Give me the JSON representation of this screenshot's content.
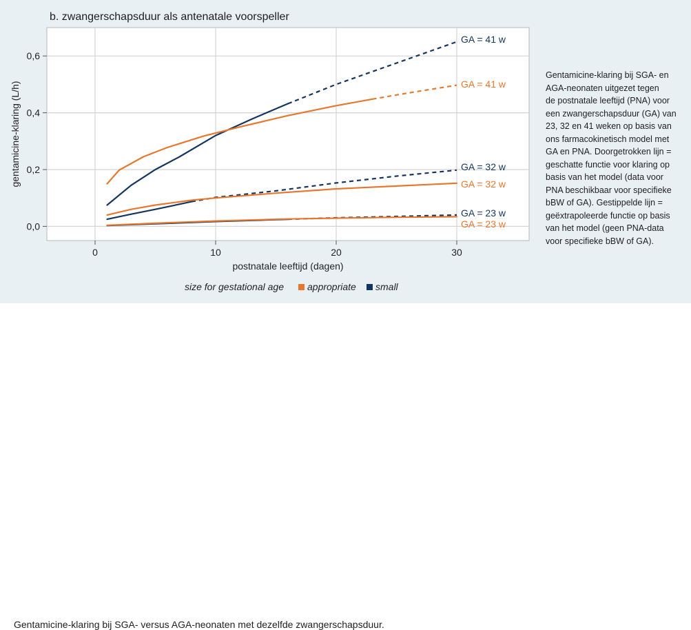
{
  "chart_data": {
    "type": "line",
    "title": "b. zwangerschapsduur als antenatale voorspeller",
    "xlabel": "postnatale leeftijd (dagen)",
    "ylabel": "gentamicine-klaring (L/h)",
    "xlim": [
      -4,
      36
    ],
    "ylim": [
      -0.05,
      0.7
    ],
    "x_ticks": [
      "0",
      "10",
      "20",
      "30"
    ],
    "y_ticks": [
      "0,0",
      "0,2",
      "0,4",
      "0,6"
    ],
    "grid": true,
    "legend": {
      "title": "size for gestational age",
      "placement": "bottom",
      "entries": [
        {
          "label": "appropriate",
          "color": "#e8772e"
        },
        {
          "label": "small",
          "color": "#14365e"
        }
      ]
    },
    "series": [],
    "annotations": [
      {
        "text": "GA = 41 w",
        "color": "#14365e"
      },
      {
        "text": "GA = 41 w",
        "color": "#e8772e"
      },
      {
        "text": "GA = 32 w",
        "color": "#14365e"
      },
      {
        "text": "GA = 32 w",
        "color": "#e8772e"
      },
      {
        "text": "GA = 23 w",
        "color": "#14365e"
      },
      {
        "text": "GA = 23 w",
        "color": "#e8772e"
      }
    ]
  },
  "note": {
    "lines": [
      "Gentamicine-klaring bij SGA- en",
      "AGA-neonaten uitgezet tegen",
      "de postnatale leeftijd (PNA) voor",
      "een zwangerschapsduur (GA) van",
      "23, 32 en 41 weken op basis van",
      "ons farmacokinetisch model met",
      "GA en PNA. Doorgetrokken lijn =",
      "geschatte functie voor klaring op",
      "basis van het model (data voor",
      "PNA beschikbaar voor specifieke",
      "bBW of GA). Gestippelde lijn =",
      "geëxtrapoleerde functie op basis",
      "van het model (geen PNA-data",
      "voor specifieke bBW of GA)."
    ]
  },
  "caption": "Gentamicine-klaring bij SGA- versus AGA-neonaten met dezelfde zwangerschapsduur."
}
